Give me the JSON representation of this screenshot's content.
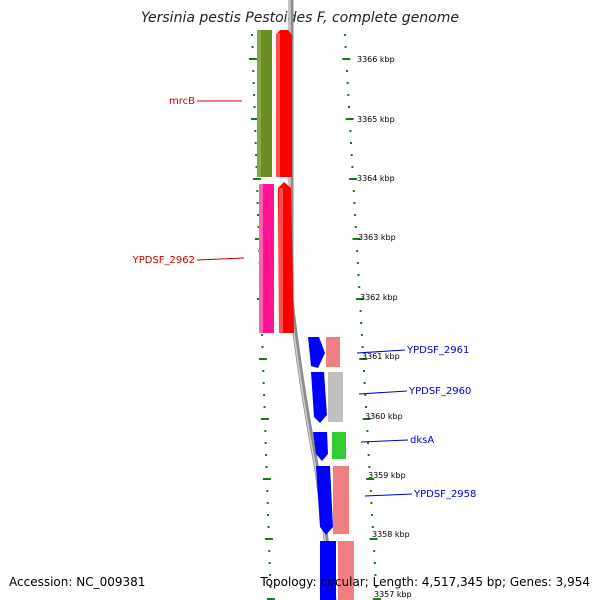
{
  "title": "Yersinia pestis Pestoides F, complete genome",
  "accession": "Accession: NC_009381",
  "summary": "Topology: circular; Length: 4,517,345 bp; Genes: 3,954",
  "colors": {
    "backbone": "#8c8c8c",
    "tick": "#1a7a1a",
    "label_red": "#cc0000",
    "label_blue": "#0000cc",
    "gene_red": "#ff0000",
    "gene_olive": "#6b8e23",
    "gene_magenta": "#ff1493",
    "gene_blue": "#0000ff",
    "gene_salmon": "#f08080",
    "gene_gray": "#c0c0c0",
    "gene_green": "#33cc33"
  },
  "scale_labels": [
    "3366 kbp",
    "3365 kbp",
    "3364 kbp",
    "3363 kbp",
    "3362 kbp",
    "3361 kbp",
    "3360 kbp",
    "3359 kbp",
    "3358 kbp",
    "3357 kbp"
  ],
  "gene_labels": [
    {
      "text": "mrcB",
      "strand": "left"
    },
    {
      "text": "YPDSF_2962",
      "strand": "left"
    },
    {
      "text": "YPDSF_2961",
      "strand": "right"
    },
    {
      "text": "YPDSF_2960",
      "strand": "right"
    },
    {
      "text": "dksA",
      "strand": "right"
    },
    {
      "text": "YPDSF_2958",
      "strand": "right"
    }
  ]
}
